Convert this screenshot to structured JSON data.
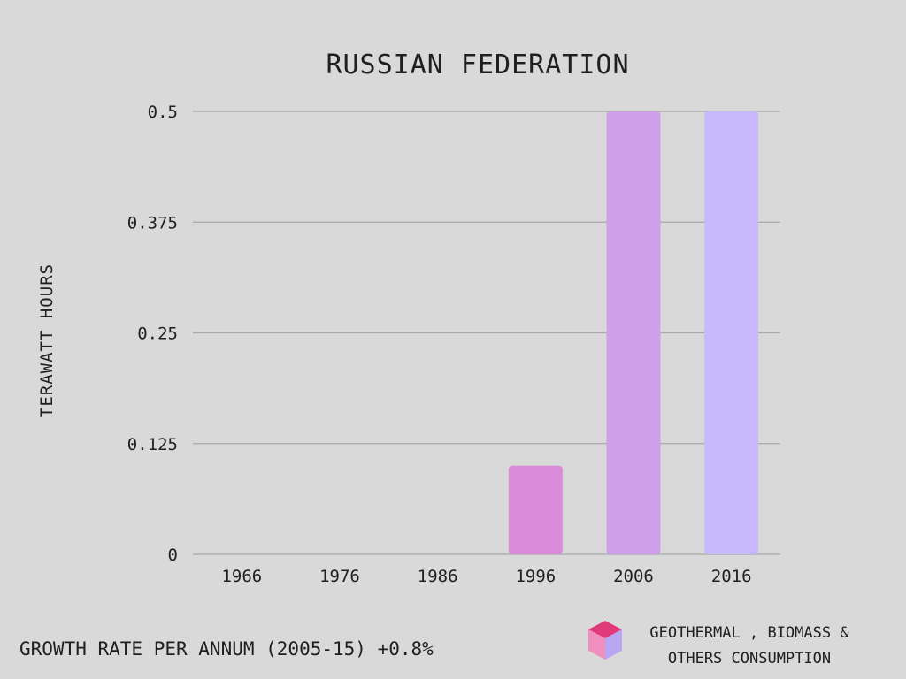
{
  "chart_data": {
    "type": "bar",
    "title": "RUSSIAN FEDERATION",
    "ylabel": "TERAWATT HOURS",
    "xlabel": "",
    "categories": [
      "1966",
      "1976",
      "1986",
      "1996",
      "2006",
      "2016"
    ],
    "values": [
      0,
      0,
      0,
      0.1,
      0.5,
      0.5
    ],
    "bar_colors": [
      "#d98ad8",
      "#d98ad8",
      "#d98ad8",
      "#d98ad8",
      "#cfa0e9",
      "#c7b9fb"
    ],
    "ylim": [
      0,
      0.5
    ],
    "yticks": [
      "0",
      "0.125",
      "0.25",
      "0.375",
      "0.5"
    ],
    "ytick_values": [
      0,
      0.125,
      0.25,
      0.375,
      0.5
    ],
    "grid": true,
    "legend": {
      "label": "GEOTHERMAL , BIOMASS & OTHERS CONSUMPTION",
      "placement": "bottom-right",
      "icon": "cube-icon",
      "icon_colors": [
        "#e13a7a",
        "#ef8fbd",
        "#b8a6f2"
      ]
    }
  },
  "footer": {
    "note": "GROWTH RATE PER ANNUM (2005-15) +0.8%"
  },
  "legend_text": {
    "line1": "GEOTHERMAL , BIOMASS &",
    "line2": "OTHERS CONSUMPTION"
  }
}
